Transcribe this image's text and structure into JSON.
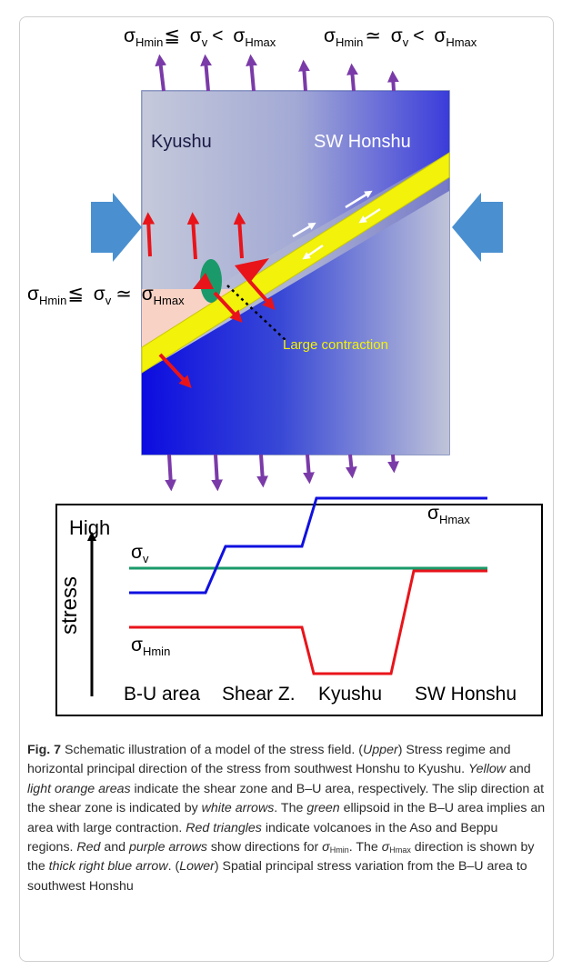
{
  "upper": {
    "top_left_eq": {
      "s1": "σ",
      "s1_sub": "Hmin",
      "rel1": "≦",
      "s2": "σ",
      "s2_sub": "v",
      "rel2": "<",
      "s3": "σ",
      "s3_sub": "Hmax"
    },
    "top_right_eq": {
      "s1": "σ",
      "s1_sub": "Hmin",
      "rel1": "≃",
      "s2": "σ",
      "s2_sub": "v",
      "rel2": "<",
      "s3": "σ",
      "s3_sub": "Hmax"
    },
    "left_eq": {
      "s1": "σ",
      "s1_sub": "Hmin",
      "rel1": "≦",
      "s2": "σ",
      "s2_sub": "v",
      "rel2": "≃",
      "s3": "σ",
      "s3_sub": "Hmax"
    },
    "kyushu": "Kyushu",
    "sw_honshu": "SW Honshu",
    "large_contraction": "Large contraction"
  },
  "lower": {
    "high": "High",
    "stress": "stress",
    "sigma_v": {
      "s": "σ",
      "sub": "v"
    },
    "sigma_hmax": {
      "s": "σ",
      "sub": "Hmax"
    },
    "sigma_hmin": {
      "s": "σ",
      "sub": "Hmin"
    },
    "xlabels": [
      "B-U area",
      "Shear Z.",
      "Kyushu",
      "SW Honshu"
    ]
  },
  "colors": {
    "purple": "#7a3aa8",
    "red": "#e8141a",
    "yellow": "#f2f20a",
    "green": "#1a9a6a",
    "blue": "#1010e0",
    "orange_area": "#f8d2c4",
    "arrow_blue": "#4a90d0"
  },
  "caption": {
    "fig": "Fig. 7",
    "p1": " Schematic illustration of a model of the stress field. (",
    "upper": "Upper",
    "p2": ") Stress regime and horizontal principal direction of the stress from southwest Honshu to Kyushu. ",
    "yellow": "Yellow",
    "p3": " and ",
    "light_orange_areas": "light orange areas",
    "p4": " indicate the shear zone and B–U area, respectively. The slip direction at the shear zone is indicated by ",
    "white_arrows": "white arrows",
    "p5": ". The ",
    "green": "green",
    "p6": " ellipsoid in the B–U area implies an area with large contraction. ",
    "red_triangles": "Red triangles",
    "p7": " indicate volcanoes in the Aso and Beppu regions. ",
    "red": "Red",
    "p8": " and ",
    "purple": "purple",
    "p9a": " arrows",
    "p9": " show directions for ",
    "sym_hmin": "σ",
    "sub_hmin": "Hmin",
    "p10": ". The ",
    "sym_hmax": "σ",
    "sub_hmax": "Hmax",
    "p11": " direction is shown by the ",
    "thick_blue": "thick right blue arrow",
    "p12": ". (",
    "lower": "Lower",
    "p13": ") Spatial principal stress variation from the B–U area to southwest Honshu"
  }
}
